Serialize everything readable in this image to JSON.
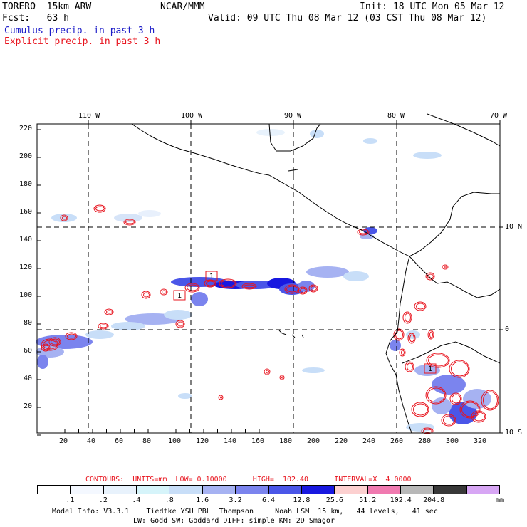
{
  "header": {
    "model": "TORERO  15km ARW",
    "org": "NCAR/MMM",
    "init": "Init: 18 UTC Mon 05 Mar 12",
    "fcst": "Fcst:   63 h",
    "valid": "Valid: 09 UTC Thu 08 Mar 12 (03 CST Thu 08 Mar 12)",
    "legend_cumulus": "Cumulus precip. in past 3 h",
    "legend_explicit": "Explicit precip. in past 3 h"
  },
  "map": {
    "lon_labels": [
      "110 W",
      "100 W",
      "90 W",
      "80 W",
      "70 W"
    ],
    "lat_labels_right": [
      "10 N",
      "0",
      "10 S"
    ],
    "y_ticks": [
      "220",
      "200",
      "180",
      "160",
      "140",
      "120",
      "100",
      "80",
      "60",
      "40",
      "20"
    ],
    "x_ticks": [
      "20",
      "40",
      "60",
      "80",
      "100",
      "120",
      "140",
      "160",
      "180",
      "200",
      "220",
      "240",
      "260",
      "280",
      "300",
      "320"
    ],
    "box_labels": [
      "1",
      "1",
      "1"
    ]
  },
  "contours_info": {
    "label": "CONTOURS:  UNITS=mm  LOW= 0.10000      HIGH=  102.40      INTERVAL=X  4.0000"
  },
  "colorbar": {
    "tick_labels": [
      ".1",
      ".2",
      ".4",
      ".8",
      "1.6",
      "3.2",
      "6.4",
      "12.8",
      "25.6",
      "51.2",
      "102.4",
      "204.8"
    ],
    "units": "mm",
    "colors": [
      "#ffffff",
      "#f4f8ff",
      "#e8f2fc",
      "#d6f4fa",
      "#c8def8",
      "#a6b2f2",
      "#7b84ee",
      "#4a56e8",
      "#1818e0",
      "#fcd0d0",
      "#f07ab0",
      "#b8b8b8",
      "#383838",
      "#d7a6f4"
    ]
  },
  "footer": {
    "line1": "Model Info: V3.3.1    Tiedtke YSU PBL  Thompson     Noah LSM  15 km,   44 levels,   41 sec",
    "line2": "LW: Godd SW: Goddard DIFF: simple KM: 2D Smagor"
  }
}
